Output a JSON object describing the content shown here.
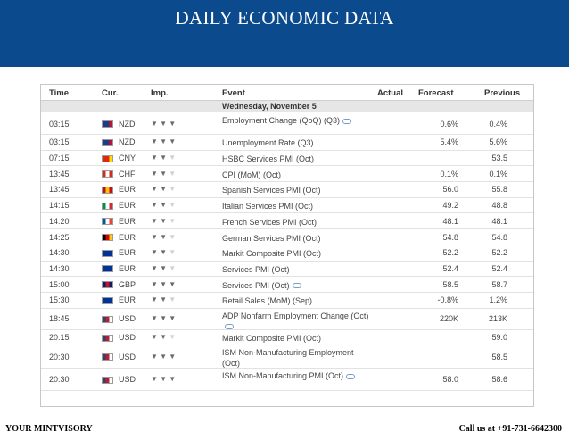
{
  "banner": {
    "title": "DAILY ECONOMIC DATA",
    "color": "#0b4a8c"
  },
  "calendar": {
    "columns": {
      "time": "Time",
      "cur": "Cur.",
      "imp": "Imp.",
      "event": "Event",
      "actual": "Actual",
      "forecast": "Forecast",
      "previous": "Previous"
    },
    "day": "Wednesday, November 5",
    "rows": [
      {
        "time": "03:15",
        "currency": "NZD",
        "flag": [
          "#1f3b8a",
          "#1f3b8a",
          "#c8102e"
        ],
        "importance": 3,
        "event": "Employment Change (QoQ) (Q3)",
        "comment": true,
        "actual": "",
        "forecast": "0.6%",
        "previous": "0.4%"
      },
      {
        "time": "03:15",
        "currency": "NZD",
        "flag": [
          "#1f3b8a",
          "#1f3b8a",
          "#c8102e"
        ],
        "importance": 3,
        "event": "Unemployment Rate (Q3)",
        "comment": false,
        "actual": "",
        "forecast": "5.4%",
        "previous": "5.6%"
      },
      {
        "time": "07:15",
        "currency": "CNY",
        "flag": [
          "#de2910",
          "#de2910",
          "#ffde00"
        ],
        "importance": 2,
        "event": "HSBC Services PMI (Oct)",
        "comment": false,
        "actual": "",
        "forecast": "",
        "previous": "53.5"
      },
      {
        "time": "13:45",
        "currency": "CHF",
        "flag": [
          "#d52b1e",
          "#ffffff",
          "#d52b1e"
        ],
        "importance": 2,
        "event": "CPI (MoM) (Oct)",
        "comment": false,
        "actual": "",
        "forecast": "0.1%",
        "previous": "0.1%"
      },
      {
        "time": "13:45",
        "currency": "EUR",
        "flag": [
          "#c60b1e",
          "#ffc400",
          "#c60b1e"
        ],
        "importance": 2,
        "event": "Spanish Services PMI (Oct)",
        "comment": false,
        "actual": "",
        "forecast": "56.0",
        "previous": "55.8"
      },
      {
        "time": "14:15",
        "currency": "EUR",
        "flag": [
          "#009246",
          "#ffffff",
          "#ce2b37"
        ],
        "importance": 2,
        "event": "Italian Services PMI (Oct)",
        "comment": false,
        "actual": "",
        "forecast": "49.2",
        "previous": "48.8"
      },
      {
        "time": "14:20",
        "currency": "EUR",
        "flag": [
          "#0055a4",
          "#ffffff",
          "#ef4135"
        ],
        "importance": 2,
        "event": "French Services PMI (Oct)",
        "comment": false,
        "actual": "",
        "forecast": "48.1",
        "previous": "48.1"
      },
      {
        "time": "14:25",
        "currency": "EUR",
        "flag": [
          "#000000",
          "#dd0000",
          "#ffce00"
        ],
        "importance": 2,
        "event": "German Services PMI (Oct)",
        "comment": false,
        "actual": "",
        "forecast": "54.8",
        "previous": "54.8"
      },
      {
        "time": "14:30",
        "currency": "EUR",
        "flag": [
          "#003399",
          "#003399",
          "#003399"
        ],
        "importance": 2,
        "event": "Markit Composite PMI (Oct)",
        "comment": false,
        "actual": "",
        "forecast": "52.2",
        "previous": "52.2"
      },
      {
        "time": "14:30",
        "currency": "EUR",
        "flag": [
          "#003399",
          "#003399",
          "#003399"
        ],
        "importance": 2,
        "event": "Services PMI (Oct)",
        "comment": false,
        "actual": "",
        "forecast": "52.4",
        "previous": "52.4"
      },
      {
        "time": "15:00",
        "currency": "GBP",
        "flag": [
          "#012169",
          "#c8102e",
          "#012169"
        ],
        "importance": 3,
        "event": "Services PMI (Oct)",
        "comment": true,
        "actual": "",
        "forecast": "58.5",
        "previous": "58.7"
      },
      {
        "time": "15:30",
        "currency": "EUR",
        "flag": [
          "#003399",
          "#003399",
          "#003399"
        ],
        "importance": 2,
        "event": "Retail Sales (MoM) (Sep)",
        "comment": false,
        "actual": "",
        "forecast": "-0.8%",
        "previous": "1.2%"
      },
      {
        "time": "18:45",
        "currency": "USD",
        "flag": [
          "#3c3b6e",
          "#b22234",
          "#ffffff"
        ],
        "importance": 3,
        "event": "ADP Nonfarm Employment Change (Oct)",
        "comment": true,
        "actual": "",
        "forecast": "220K",
        "previous": "213K"
      },
      {
        "time": "20:15",
        "currency": "USD",
        "flag": [
          "#3c3b6e",
          "#b22234",
          "#ffffff"
        ],
        "importance": 2,
        "event": "Markit Composite PMI (Oct)",
        "comment": false,
        "actual": "",
        "forecast": "",
        "previous": "59.0"
      },
      {
        "time": "20:30",
        "currency": "USD",
        "flag": [
          "#3c3b6e",
          "#b22234",
          "#ffffff"
        ],
        "importance": 3,
        "event": "ISM Non-Manufacturing Employment (Oct)",
        "comment": false,
        "actual": "",
        "forecast": "",
        "previous": "58.5"
      },
      {
        "time": "20:30",
        "currency": "USD",
        "flag": [
          "#3c3b6e",
          "#b22234",
          "#ffffff"
        ],
        "importance": 3,
        "event": "ISM Non-Manufacturing PMI (Oct)",
        "comment": true,
        "actual": "",
        "forecast": "58.0",
        "previous": "58.6"
      }
    ]
  },
  "footer": {
    "left": "YOUR MINTVISORY",
    "right": "Call us at +91-731-6642300"
  }
}
